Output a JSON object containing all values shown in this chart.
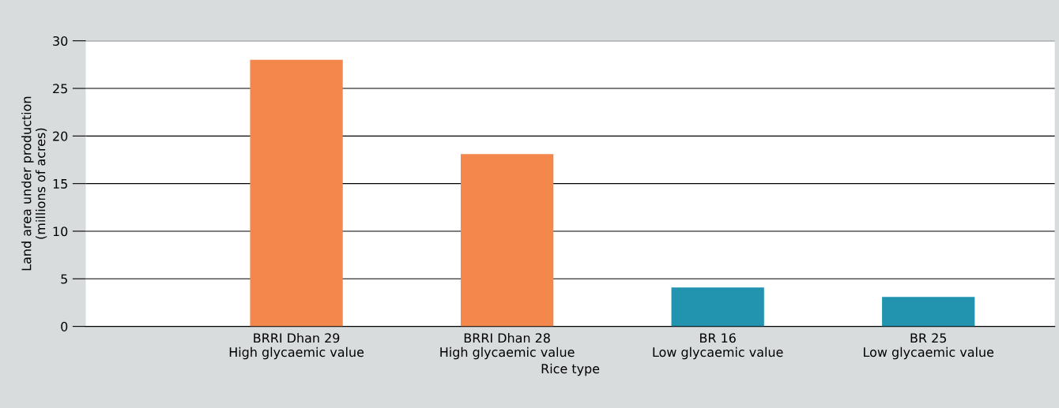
{
  "chart_data": {
    "type": "bar",
    "xlabel": "Rice type",
    "ylabel": "Land area under production\n(millions of acres)",
    "categories": [
      "BRRI Dhan 29\nHigh glycaemic value",
      "BRRI Dhan 28\nHigh glycaemic value",
      "BR 16\nLow glycaemic value",
      "BR 25\nLow glycaemic value"
    ],
    "values": [
      28,
      18.1,
      4.1,
      3.1
    ],
    "colors": [
      "#f4874b",
      "#f4874b",
      "#2394b0",
      "#2394b0"
    ],
    "ylim": [
      0,
      30
    ],
    "yticks": [
      0,
      5,
      10,
      15,
      20,
      25,
      30
    ],
    "grid": "y"
  }
}
